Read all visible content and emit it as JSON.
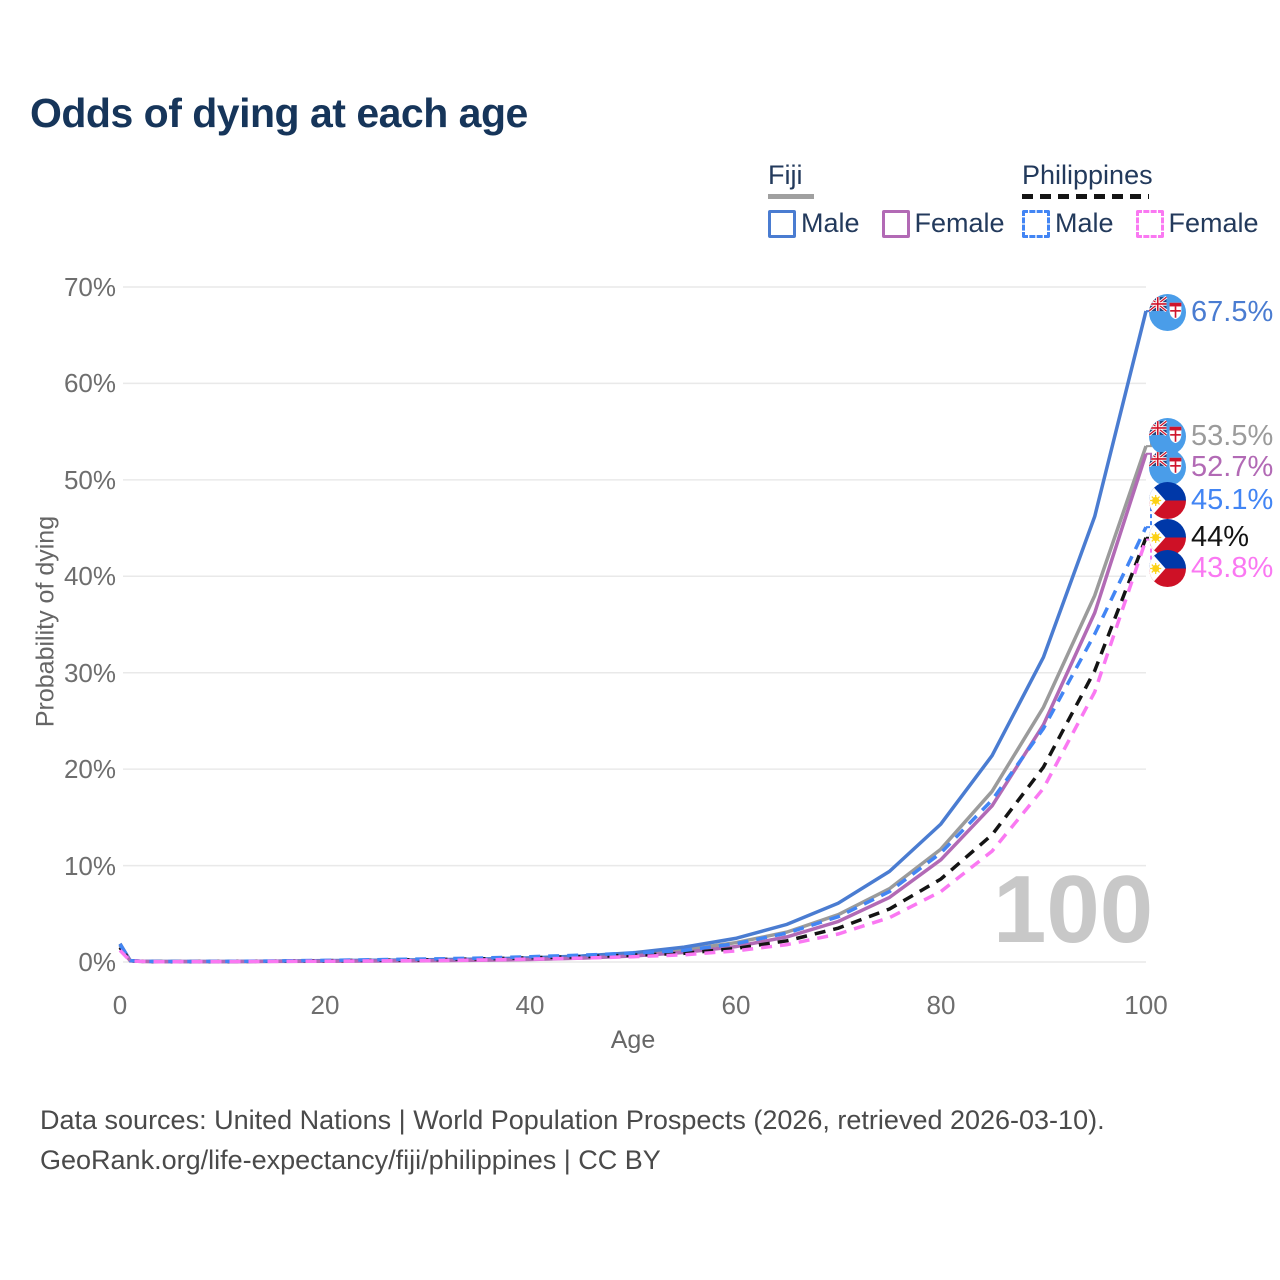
{
  "title": "Odds of dying at each age",
  "legend": {
    "groups": [
      {
        "name": "Fiji",
        "items": [
          {
            "label": "Male"
          },
          {
            "label": "Female"
          }
        ]
      },
      {
        "name": "Philippines",
        "items": [
          {
            "label": "Male"
          },
          {
            "label": "Female"
          }
        ]
      }
    ]
  },
  "watermark": "100",
  "footer": {
    "line1": "Data sources: United Nations | World Population Prospects (2026, retrieved 2026-03-10).",
    "line2": "GeoRank.org/life-expectancy/fiji/philippines | CC BY"
  },
  "colors": {
    "title": "#16355a",
    "grid": "#e9e9e9",
    "axis_text": "#6e6e6e",
    "watermark": "#c8c8c8"
  },
  "chart_data": {
    "type": "line",
    "title": "Odds of dying at each age",
    "xlabel": "Age",
    "ylabel": "Probability of dying",
    "xlim": [
      0,
      100
    ],
    "ylim": [
      0,
      70
    ],
    "xticks": [
      0,
      20,
      40,
      60,
      80,
      100
    ],
    "ytick_labels": [
      "0%",
      "10%",
      "20%",
      "30%",
      "40%",
      "50%",
      "60%",
      "70%"
    ],
    "grid": "horizontal",
    "legend_position": "top-right",
    "x": [
      0,
      1,
      2,
      3,
      4,
      5,
      10,
      15,
      20,
      25,
      30,
      35,
      40,
      45,
      50,
      55,
      60,
      65,
      70,
      75,
      80,
      85,
      90,
      95,
      100
    ],
    "series": [
      {
        "name": "Fiji",
        "country": "Fiji",
        "sex": "Both",
        "style": "solid",
        "color": "#9b9b9b",
        "end_label": "53.5%",
        "values": [
          1.7,
          0.13,
          0.07,
          0.05,
          0.04,
          0.04,
          0.04,
          0.07,
          0.11,
          0.14,
          0.18,
          0.24,
          0.34,
          0.5,
          0.76,
          1.25,
          2.0,
          3.1,
          4.9,
          7.6,
          11.7,
          17.7,
          26.4,
          38.0,
          53.5
        ]
      },
      {
        "name": "Fiji Male",
        "country": "Fiji",
        "sex": "Male",
        "style": "solid",
        "color": "#4a7cd1",
        "end_label": "67.5%",
        "values": [
          1.9,
          0.15,
          0.08,
          0.06,
          0.05,
          0.05,
          0.05,
          0.09,
          0.14,
          0.18,
          0.23,
          0.3,
          0.42,
          0.62,
          0.95,
          1.55,
          2.45,
          3.9,
          6.1,
          9.4,
          14.3,
          21.4,
          31.6,
          46.2,
          67.5
        ]
      },
      {
        "name": "Fiji Female",
        "country": "Fiji",
        "sex": "Female",
        "style": "solid",
        "color": "#b26ab5",
        "end_label": "52.7%",
        "values": [
          1.5,
          0.11,
          0.06,
          0.05,
          0.04,
          0.04,
          0.04,
          0.06,
          0.08,
          0.1,
          0.13,
          0.18,
          0.26,
          0.4,
          0.62,
          1.0,
          1.6,
          2.6,
          4.2,
          6.7,
          10.6,
          16.2,
          24.6,
          36.2,
          52.7
        ]
      },
      {
        "name": "Philippines",
        "country": "Philippines",
        "sex": "Both",
        "style": "dashed",
        "color": "#141414",
        "end_label": "44%",
        "values": [
          1.5,
          0.12,
          0.07,
          0.05,
          0.04,
          0.04,
          0.05,
          0.08,
          0.13,
          0.18,
          0.24,
          0.32,
          0.44,
          0.55,
          0.7,
          0.9,
          1.4,
          2.2,
          3.5,
          5.5,
          8.6,
          13.2,
          20.2,
          30.2,
          44.0
        ]
      },
      {
        "name": "Philippines Male",
        "country": "Philippines",
        "sex": "Male",
        "style": "dashed",
        "color": "#4285f4",
        "end_label": "45.1%",
        "values": [
          1.8,
          0.14,
          0.08,
          0.06,
          0.05,
          0.05,
          0.06,
          0.1,
          0.17,
          0.24,
          0.31,
          0.4,
          0.55,
          0.7,
          0.92,
          1.2,
          1.9,
          3.0,
          4.7,
          7.3,
          11.3,
          16.8,
          24.2,
          34.0,
          45.1
        ]
      },
      {
        "name": "Philippines Female",
        "country": "Philippines",
        "sex": "Female",
        "style": "dashed",
        "color": "#fa78f2",
        "end_label": "43.8%",
        "values": [
          1.2,
          0.1,
          0.06,
          0.04,
          0.03,
          0.03,
          0.04,
          0.06,
          0.08,
          0.11,
          0.15,
          0.21,
          0.3,
          0.4,
          0.55,
          0.75,
          1.15,
          1.8,
          2.9,
          4.6,
          7.3,
          11.5,
          18.0,
          28.0,
          43.8
        ]
      }
    ]
  }
}
